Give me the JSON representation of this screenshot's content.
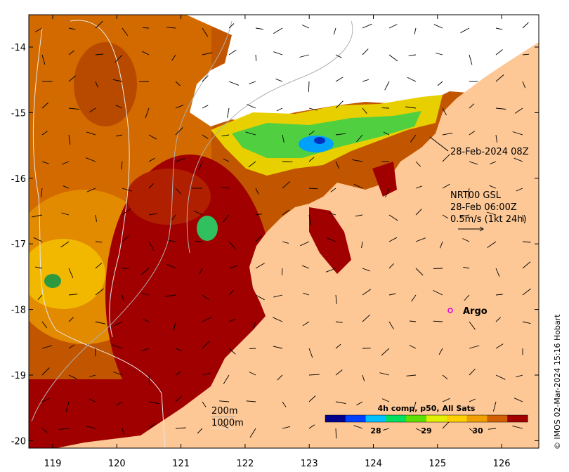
{
  "map": {
    "lon_ticks": [
      "119",
      "120",
      "121",
      "122",
      "123",
      "124",
      "125",
      "126"
    ],
    "lat_ticks": [
      "-14",
      "-15",
      "-16",
      "-17",
      "-18",
      "-19",
      "-20"
    ],
    "image_time": "28-Feb-2024 08Z",
    "currents": {
      "source": "NRT00 GSL",
      "time": "28-Feb 06:00Z",
      "scale_label": "0.5m/s (1kt 24h)"
    },
    "argo_label": "Argo",
    "bathymetry": {
      "contour_200": "200m",
      "contour_1000": "1000m"
    },
    "colorbar": {
      "title": "4h comp, p50, All Sats",
      "ticks": [
        "28",
        "29",
        "30"
      ],
      "colors": [
        "#00008b",
        "#0040ff",
        "#00c0ff",
        "#00e060",
        "#60e000",
        "#e0f000",
        "#ffd000",
        "#f0a000",
        "#d06000",
        "#a00000"
      ]
    },
    "credit": "© IMOS 02-Mar-2024 15:16 Hobart",
    "colors": {
      "land": "#fdc896",
      "cloud": "#ffffff",
      "sst_warm": "#a00000",
      "sst_mid": "#d06a00",
      "sst_cool": "#f4c000",
      "argo": "#e000e0"
    }
  }
}
